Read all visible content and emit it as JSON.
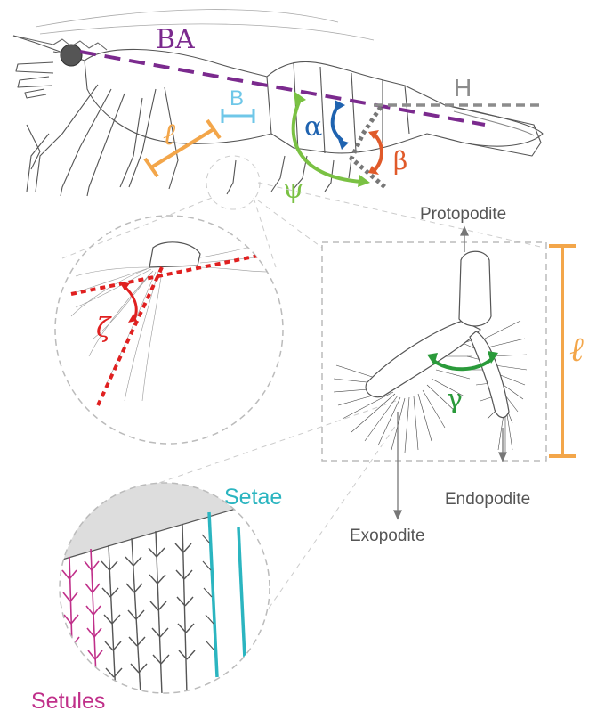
{
  "figure": {
    "labels": {
      "body_axis": "BA",
      "horizontal": "H",
      "width": "B",
      "length_top": "ℓ",
      "length_right": "ℓ",
      "alpha": "α",
      "beta": "β",
      "psi": "ψ",
      "zeta": "ζ",
      "gamma": "γ",
      "protopodite": "Protopodite",
      "exopodite": "Exopodite",
      "endopodite": "Endopodite",
      "setae": "Setae",
      "setules": "Setules"
    },
    "colors": {
      "body_axis": "#7b2a8e",
      "horizontal": "#8c8c8c",
      "width": "#6fc7e8",
      "length": "#f3a64a",
      "alpha": "#1f63b0",
      "beta": "#e05a2a",
      "psi": "#7ac143",
      "zeta": "#e02020",
      "gamma": "#2a9a3a",
      "setae": "#2bb5c0",
      "setules": "#c0308a",
      "outline": "#555555",
      "guide": "#bbbbbb"
    }
  }
}
